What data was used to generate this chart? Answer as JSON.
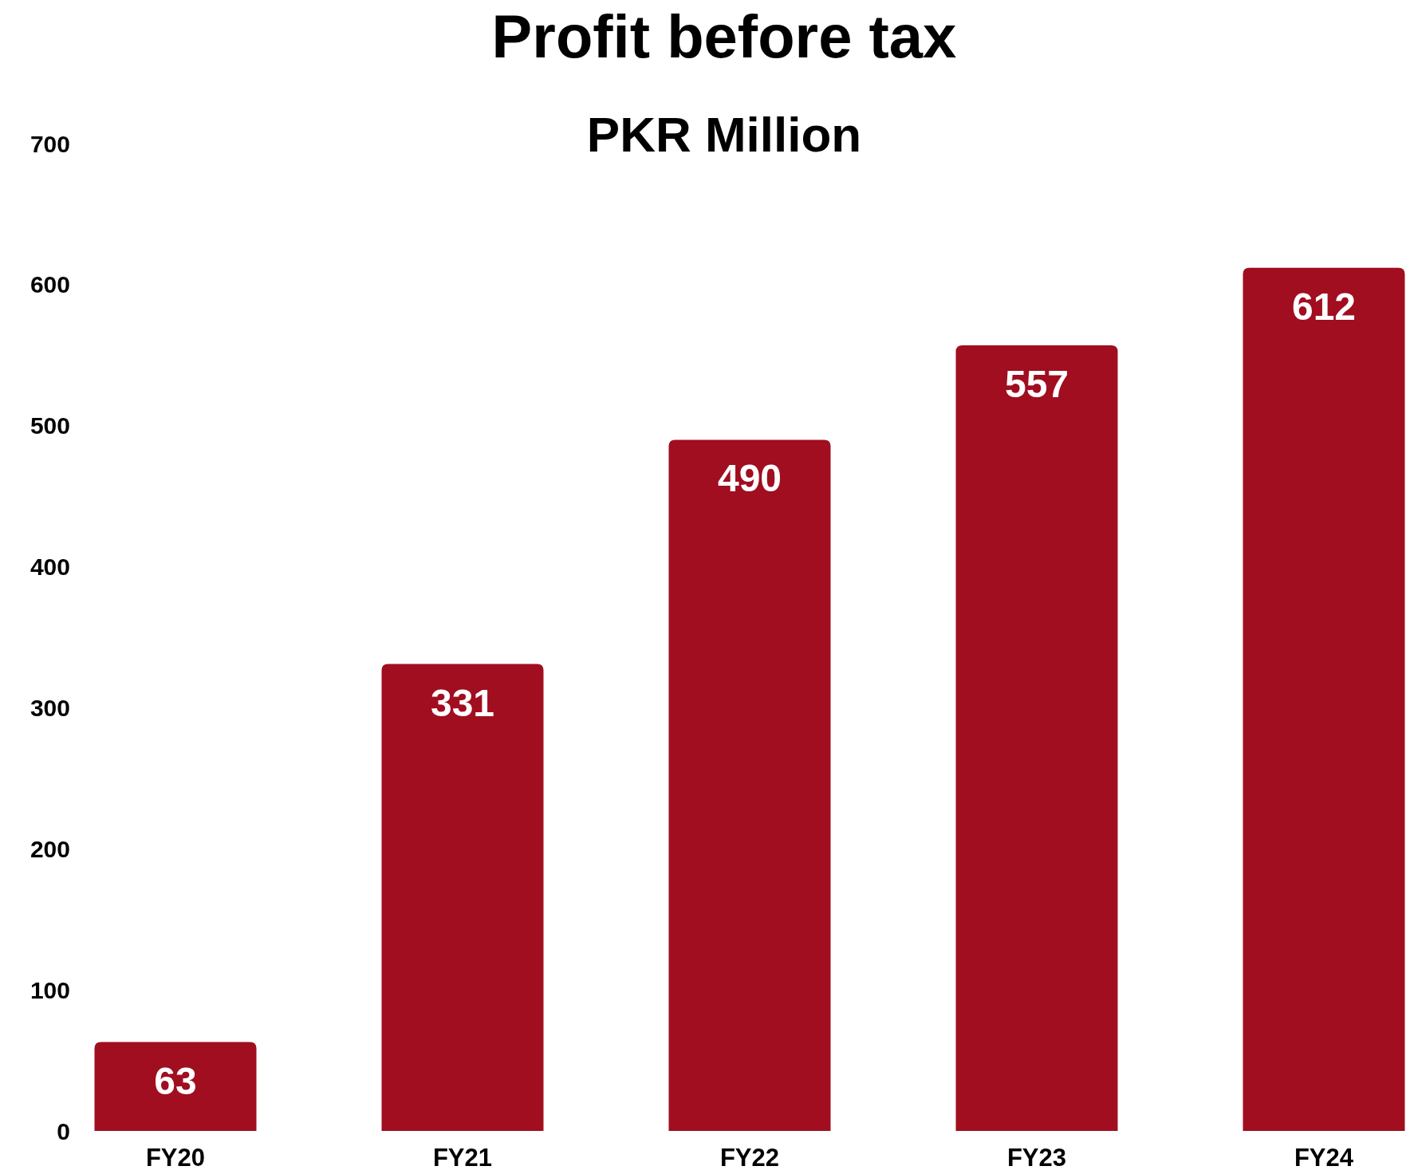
{
  "chart_data": {
    "type": "bar",
    "title": "Profit before tax",
    "subtitle": "PKR Million",
    "categories": [
      "FY20",
      "FY21",
      "FY22",
      "FY23",
      "FY24"
    ],
    "values": [
      63,
      331,
      490,
      557,
      612
    ],
    "color": "#a00e20",
    "ylim": [
      0,
      700
    ],
    "yticks": [
      0,
      100,
      200,
      300,
      400,
      500,
      600,
      700
    ],
    "data_labels": true
  }
}
